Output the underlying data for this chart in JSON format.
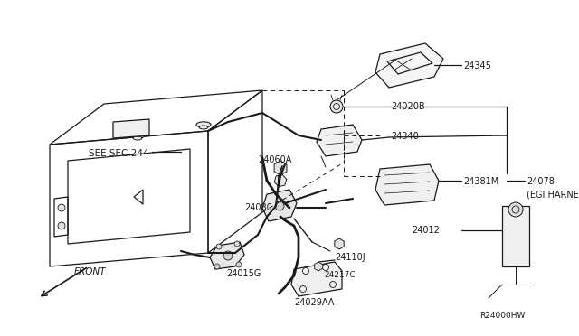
{
  "bg_color": "#ffffff",
  "line_color": "#1a1a1a",
  "diagram_id": "R24000HW",
  "see_sec": "SEE SEC.244",
  "front_label": "FRONT",
  "font_size_label": 7.0,
  "font_size_id": 6.5
}
